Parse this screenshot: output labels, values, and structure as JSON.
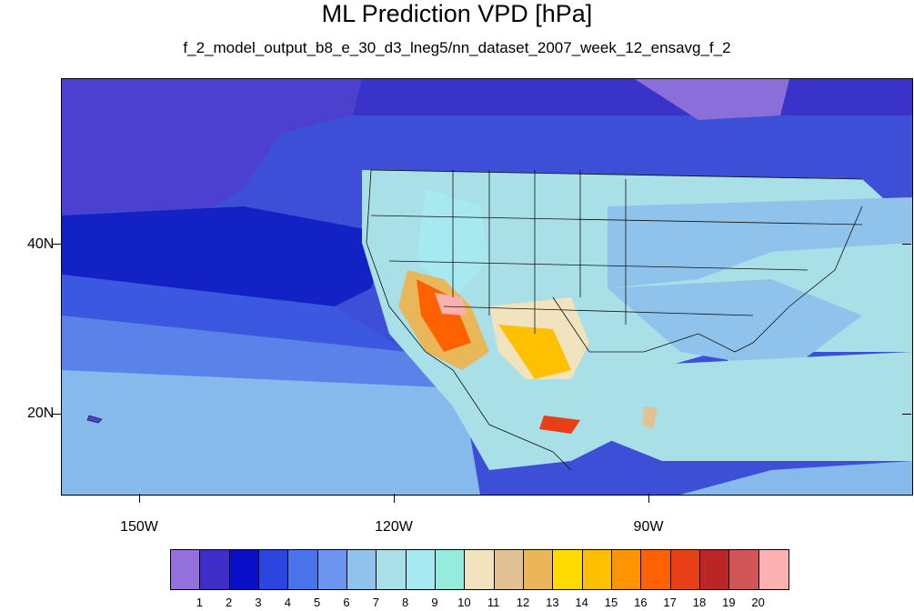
{
  "title": "ML Prediction VPD [hPa]",
  "subtitle": "f_2_model_output_b8_e_30_d3_lneg5/nn_dataset_2007_week_12_ensavg_f_2",
  "lat_labels": [
    "40N",
    "20N"
  ],
  "lon_labels": [
    "150W",
    "120W",
    "90W"
  ],
  "colorbar": {
    "colors": [
      "#9370db",
      "#3e2ec7",
      "#0b0fc9",
      "#2b45e0",
      "#4a74eb",
      "#6b95ee",
      "#8fc3ec",
      "#a9dfe6",
      "#a6e9f0",
      "#95ecdc",
      "#f1e3bd",
      "#e2c194",
      "#e9b75a",
      "#fedb00",
      "#fec000",
      "#fd9400",
      "#fe6100",
      "#e93f18",
      "#bc2525",
      "#d05555",
      "#fdb0b0"
    ],
    "labels": [
      "1",
      "2",
      "3",
      "4",
      "5",
      "6",
      "7",
      "8",
      "9",
      "10",
      "11",
      "12",
      "13",
      "14",
      "15",
      "16",
      "17",
      "18",
      "19",
      "20"
    ]
  }
}
